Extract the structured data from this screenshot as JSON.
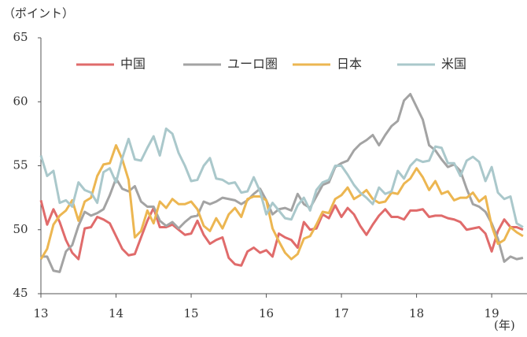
{
  "chart_data": {
    "type": "line",
    "y_label": "（ポイント）",
    "x_label": "(年)",
    "x": [
      13,
      13.083,
      13.167,
      13.25,
      13.333,
      13.417,
      13.5,
      13.583,
      13.667,
      13.75,
      13.833,
      13.917,
      14,
      14.083,
      14.167,
      14.25,
      14.333,
      14.417,
      14.5,
      14.583,
      14.667,
      14.75,
      14.833,
      14.917,
      15,
      15.083,
      15.167,
      15.25,
      15.333,
      15.417,
      15.5,
      15.583,
      15.667,
      15.75,
      15.833,
      15.917,
      16,
      16.083,
      16.167,
      16.25,
      16.333,
      16.417,
      16.5,
      16.583,
      16.667,
      16.75,
      16.833,
      16.917,
      17,
      17.083,
      17.167,
      17.25,
      17.333,
      17.417,
      17.5,
      17.583,
      17.667,
      17.75,
      17.833,
      17.917,
      18,
      18.083,
      18.167,
      18.25,
      18.333,
      18.417,
      18.5,
      18.583,
      18.667,
      18.75,
      18.833,
      18.917,
      19,
      19.083,
      19.167,
      19.25,
      19.333,
      19.417
    ],
    "series": [
      {
        "name": "中国",
        "color": "#e06b6b",
        "values": [
          52.3,
          50.4,
          51.6,
          50.6,
          49.2,
          48.2,
          47.7,
          50.1,
          50.2,
          51.0,
          50.8,
          50.5,
          49.5,
          48.5,
          48.0,
          48.1,
          49.4,
          50.7,
          51.7,
          50.2,
          50.2,
          50.4,
          50.0,
          49.6,
          49.7,
          50.7,
          49.6,
          48.9,
          49.2,
          49.4,
          47.8,
          47.3,
          47.2,
          48.3,
          48.6,
          48.2,
          48.4,
          47.9,
          49.7,
          49.4,
          49.2,
          48.6,
          50.6,
          50.0,
          50.1,
          51.2,
          50.9,
          51.9,
          51.0,
          51.7,
          51.2,
          50.3,
          49.6,
          50.4,
          51.1,
          51.6,
          51.0,
          51.0,
          50.8,
          51.5,
          51.5,
          51.6,
          51.0,
          51.1,
          51.1,
          50.9,
          50.8,
          50.6,
          50.0,
          50.1,
          50.2,
          49.7,
          48.3,
          49.9,
          50.8,
          50.2,
          50.2,
          50.0
        ]
      },
      {
        "name": "ユーロ圏",
        "color": "#a3a3a3",
        "values": [
          47.9,
          47.9,
          46.8,
          46.7,
          48.3,
          48.8,
          50.3,
          51.4,
          51.1,
          51.3,
          51.6,
          52.7,
          54.0,
          53.2,
          53.0,
          53.4,
          52.2,
          51.8,
          51.8,
          50.7,
          50.3,
          50.6,
          50.1,
          50.6,
          51.0,
          51.1,
          52.2,
          52.0,
          52.2,
          52.5,
          52.4,
          52.3,
          52.0,
          52.3,
          52.8,
          53.2,
          52.3,
          51.2,
          51.6,
          51.7,
          51.5,
          52.8,
          52.0,
          51.7,
          52.6,
          53.5,
          53.7,
          54.9,
          55.2,
          55.4,
          56.2,
          56.7,
          57.0,
          57.4,
          56.6,
          57.4,
          58.1,
          58.5,
          60.1,
          60.6,
          59.6,
          58.6,
          56.6,
          56.2,
          55.5,
          54.9,
          55.1,
          54.6,
          53.2,
          52.0,
          51.8,
          51.4,
          50.5,
          49.3,
          47.5,
          47.9,
          47.7,
          47.8
        ]
      },
      {
        "name": "日本",
        "color": "#ecb651",
        "values": [
          47.7,
          48.5,
          50.4,
          51.1,
          51.5,
          52.3,
          50.7,
          52.2,
          52.5,
          54.2,
          55.1,
          55.2,
          56.6,
          55.5,
          53.9,
          49.4,
          49.9,
          51.5,
          50.5,
          52.2,
          51.7,
          52.4,
          52.0,
          52.0,
          52.2,
          51.6,
          50.3,
          49.9,
          50.9,
          50.1,
          51.2,
          51.7,
          51.0,
          52.4,
          52.6,
          52.6,
          52.3,
          50.1,
          49.1,
          48.2,
          47.7,
          48.1,
          49.3,
          49.5,
          50.4,
          51.4,
          51.3,
          52.4,
          52.7,
          53.3,
          52.4,
          52.7,
          53.1,
          52.4,
          52.1,
          52.2,
          52.9,
          52.8,
          53.6,
          54.0,
          54.8,
          54.1,
          53.1,
          53.8,
          52.8,
          53.0,
          52.3,
          52.5,
          52.5,
          52.9,
          52.2,
          52.6,
          50.3,
          48.9,
          49.2,
          50.2,
          49.8,
          49.5
        ]
      },
      {
        "name": "米国",
        "color": "#aac8cb",
        "values": [
          55.8,
          54.2,
          54.6,
          52.1,
          52.3,
          51.8,
          53.7,
          53.1,
          52.9,
          52.1,
          54.5,
          54.8,
          53.7,
          55.6,
          57.1,
          55.5,
          55.4,
          56.4,
          57.3,
          55.8,
          57.9,
          57.5,
          56.0,
          55.0,
          53.8,
          53.9,
          55.0,
          55.6,
          54.0,
          53.9,
          53.6,
          53.7,
          52.9,
          53.0,
          54.1,
          53.0,
          51.2,
          52.1,
          51.5,
          50.9,
          50.8,
          51.9,
          52.5,
          51.5,
          53.1,
          53.7,
          53.9,
          55.0,
          55.0,
          54.3,
          53.5,
          52.9,
          52.5,
          52.0,
          53.3,
          52.8,
          53.0,
          54.6,
          54.0,
          55.0,
          55.5,
          55.3,
          55.4,
          56.5,
          56.4,
          55.2,
          55.2,
          54.2,
          55.4,
          55.7,
          55.3,
          53.8,
          54.9,
          52.9,
          52.4,
          52.6,
          50.5,
          50.2
        ]
      }
    ],
    "xlim": [
      13,
      19.47
    ],
    "xticks": [
      13,
      14,
      15,
      16,
      17,
      18,
      19
    ],
    "ylim": [
      45,
      65
    ],
    "yticks": [
      45,
      50,
      55,
      60,
      65
    ],
    "legend": "top",
    "grid": false
  }
}
